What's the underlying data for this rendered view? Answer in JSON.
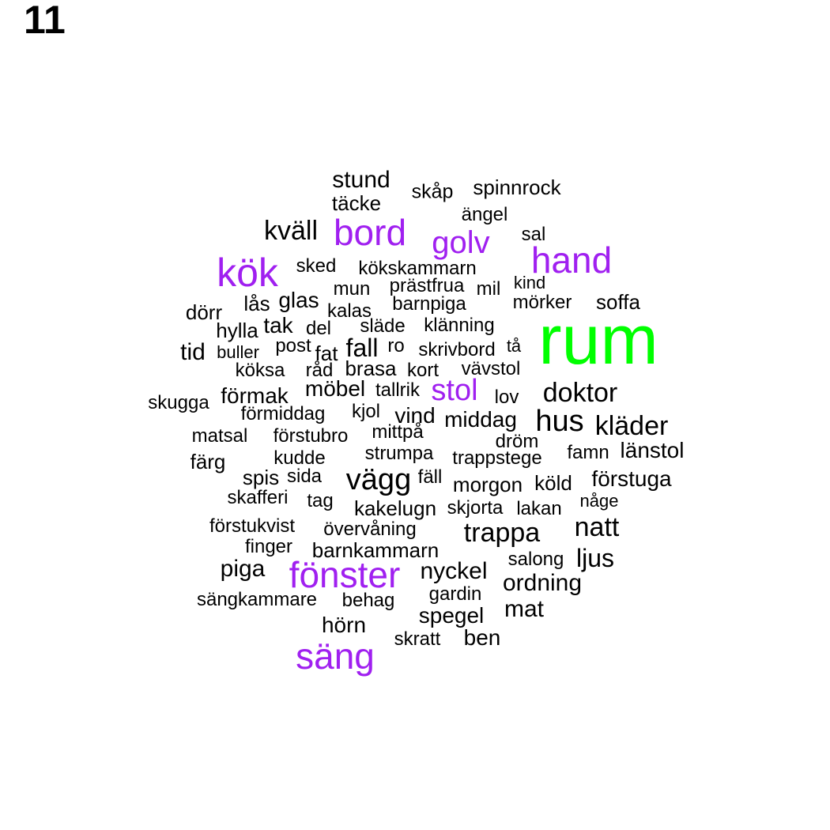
{
  "panel_label": "11",
  "colors": {
    "primary": "#00ff00",
    "highlight": "#a020f0",
    "normal": "#000000"
  },
  "words": [
    {
      "text": "rum",
      "tier": "primary"
    },
    {
      "text": "kök",
      "tier": "highlight"
    },
    {
      "text": "bord",
      "tier": "highlight"
    },
    {
      "text": "golv",
      "tier": "highlight"
    },
    {
      "text": "hand",
      "tier": "highlight"
    },
    {
      "text": "stol",
      "tier": "highlight"
    },
    {
      "text": "fönster",
      "tier": "highlight"
    },
    {
      "text": "säng",
      "tier": "highlight"
    },
    {
      "text": "stund",
      "tier": "normal"
    },
    {
      "text": "skåp",
      "tier": "normal"
    },
    {
      "text": "spinnrock",
      "tier": "normal"
    },
    {
      "text": "täcke",
      "tier": "normal"
    },
    {
      "text": "ängel",
      "tier": "normal"
    },
    {
      "text": "kväll",
      "tier": "normal"
    },
    {
      "text": "sal",
      "tier": "normal"
    },
    {
      "text": "sked",
      "tier": "normal"
    },
    {
      "text": "kökskammarn",
      "tier": "normal"
    },
    {
      "text": "prästfrua",
      "tier": "normal"
    },
    {
      "text": "kind",
      "tier": "normal"
    },
    {
      "text": "mun",
      "tier": "normal"
    },
    {
      "text": "mil",
      "tier": "normal"
    },
    {
      "text": "soffa",
      "tier": "normal"
    },
    {
      "text": "glas",
      "tier": "normal"
    },
    {
      "text": "lås",
      "tier": "normal"
    },
    {
      "text": "barnpiga",
      "tier": "normal"
    },
    {
      "text": "mörker",
      "tier": "normal"
    },
    {
      "text": "kalas",
      "tier": "normal"
    },
    {
      "text": "dörr",
      "tier": "normal"
    },
    {
      "text": "hylla",
      "tier": "normal"
    },
    {
      "text": "tak",
      "tier": "normal"
    },
    {
      "text": "del",
      "tier": "normal"
    },
    {
      "text": "släde",
      "tier": "normal"
    },
    {
      "text": "klänning",
      "tier": "normal"
    },
    {
      "text": "tid",
      "tier": "normal"
    },
    {
      "text": "buller",
      "tier": "normal"
    },
    {
      "text": "post",
      "tier": "normal"
    },
    {
      "text": "fat",
      "tier": "normal"
    },
    {
      "text": "fall",
      "tier": "normal"
    },
    {
      "text": "ro",
      "tier": "normal"
    },
    {
      "text": "skrivbord",
      "tier": "normal"
    },
    {
      "text": "tå",
      "tier": "normal"
    },
    {
      "text": "köksa",
      "tier": "normal"
    },
    {
      "text": "råd",
      "tier": "normal"
    },
    {
      "text": "brasa",
      "tier": "normal"
    },
    {
      "text": "kort",
      "tier": "normal"
    },
    {
      "text": "vävstol",
      "tier": "normal"
    },
    {
      "text": "möbel",
      "tier": "normal"
    },
    {
      "text": "tallrik",
      "tier": "normal"
    },
    {
      "text": "doktor",
      "tier": "normal"
    },
    {
      "text": "skugga",
      "tier": "normal"
    },
    {
      "text": "förmak",
      "tier": "normal"
    },
    {
      "text": "lov",
      "tier": "normal"
    },
    {
      "text": "förmiddag",
      "tier": "normal"
    },
    {
      "text": "kjol",
      "tier": "normal"
    },
    {
      "text": "vind",
      "tier": "normal"
    },
    {
      "text": "middag",
      "tier": "normal"
    },
    {
      "text": "hus",
      "tier": "normal"
    },
    {
      "text": "kläder",
      "tier": "normal"
    },
    {
      "text": "matsal",
      "tier": "normal"
    },
    {
      "text": "förstubro",
      "tier": "normal"
    },
    {
      "text": "mittpå",
      "tier": "normal"
    },
    {
      "text": "dröm",
      "tier": "normal"
    },
    {
      "text": "färg",
      "tier": "normal"
    },
    {
      "text": "kudde",
      "tier": "normal"
    },
    {
      "text": "strumpa",
      "tier": "normal"
    },
    {
      "text": "trappstege",
      "tier": "normal"
    },
    {
      "text": "famn",
      "tier": "normal"
    },
    {
      "text": "länstol",
      "tier": "normal"
    },
    {
      "text": "spis",
      "tier": "normal"
    },
    {
      "text": "sida",
      "tier": "normal"
    },
    {
      "text": "vägg",
      "tier": "normal"
    },
    {
      "text": "fäll",
      "tier": "normal"
    },
    {
      "text": "morgon",
      "tier": "normal"
    },
    {
      "text": "köld",
      "tier": "normal"
    },
    {
      "text": "förstuga",
      "tier": "normal"
    },
    {
      "text": "skafferi",
      "tier": "normal"
    },
    {
      "text": "tag",
      "tier": "normal"
    },
    {
      "text": "kakelugn",
      "tier": "normal"
    },
    {
      "text": "skjorta",
      "tier": "normal"
    },
    {
      "text": "lakan",
      "tier": "normal"
    },
    {
      "text": "någe",
      "tier": "normal"
    },
    {
      "text": "förstukvist",
      "tier": "normal"
    },
    {
      "text": "övervåning",
      "tier": "normal"
    },
    {
      "text": "trappa",
      "tier": "normal"
    },
    {
      "text": "natt",
      "tier": "normal"
    },
    {
      "text": "finger",
      "tier": "normal"
    },
    {
      "text": "barnkammarn",
      "tier": "normal"
    },
    {
      "text": "salong",
      "tier": "normal"
    },
    {
      "text": "ljus",
      "tier": "normal"
    },
    {
      "text": "piga",
      "tier": "normal"
    },
    {
      "text": "nyckel",
      "tier": "normal"
    },
    {
      "text": "ordning",
      "tier": "normal"
    },
    {
      "text": "gardin",
      "tier": "normal"
    },
    {
      "text": "sängkammare",
      "tier": "normal"
    },
    {
      "text": "behag",
      "tier": "normal"
    },
    {
      "text": "spegel",
      "tier": "normal"
    },
    {
      "text": "mat",
      "tier": "normal"
    },
    {
      "text": "hörn",
      "tier": "normal"
    },
    {
      "text": "skratt",
      "tier": "normal"
    },
    {
      "text": "ben",
      "tier": "normal"
    }
  ]
}
